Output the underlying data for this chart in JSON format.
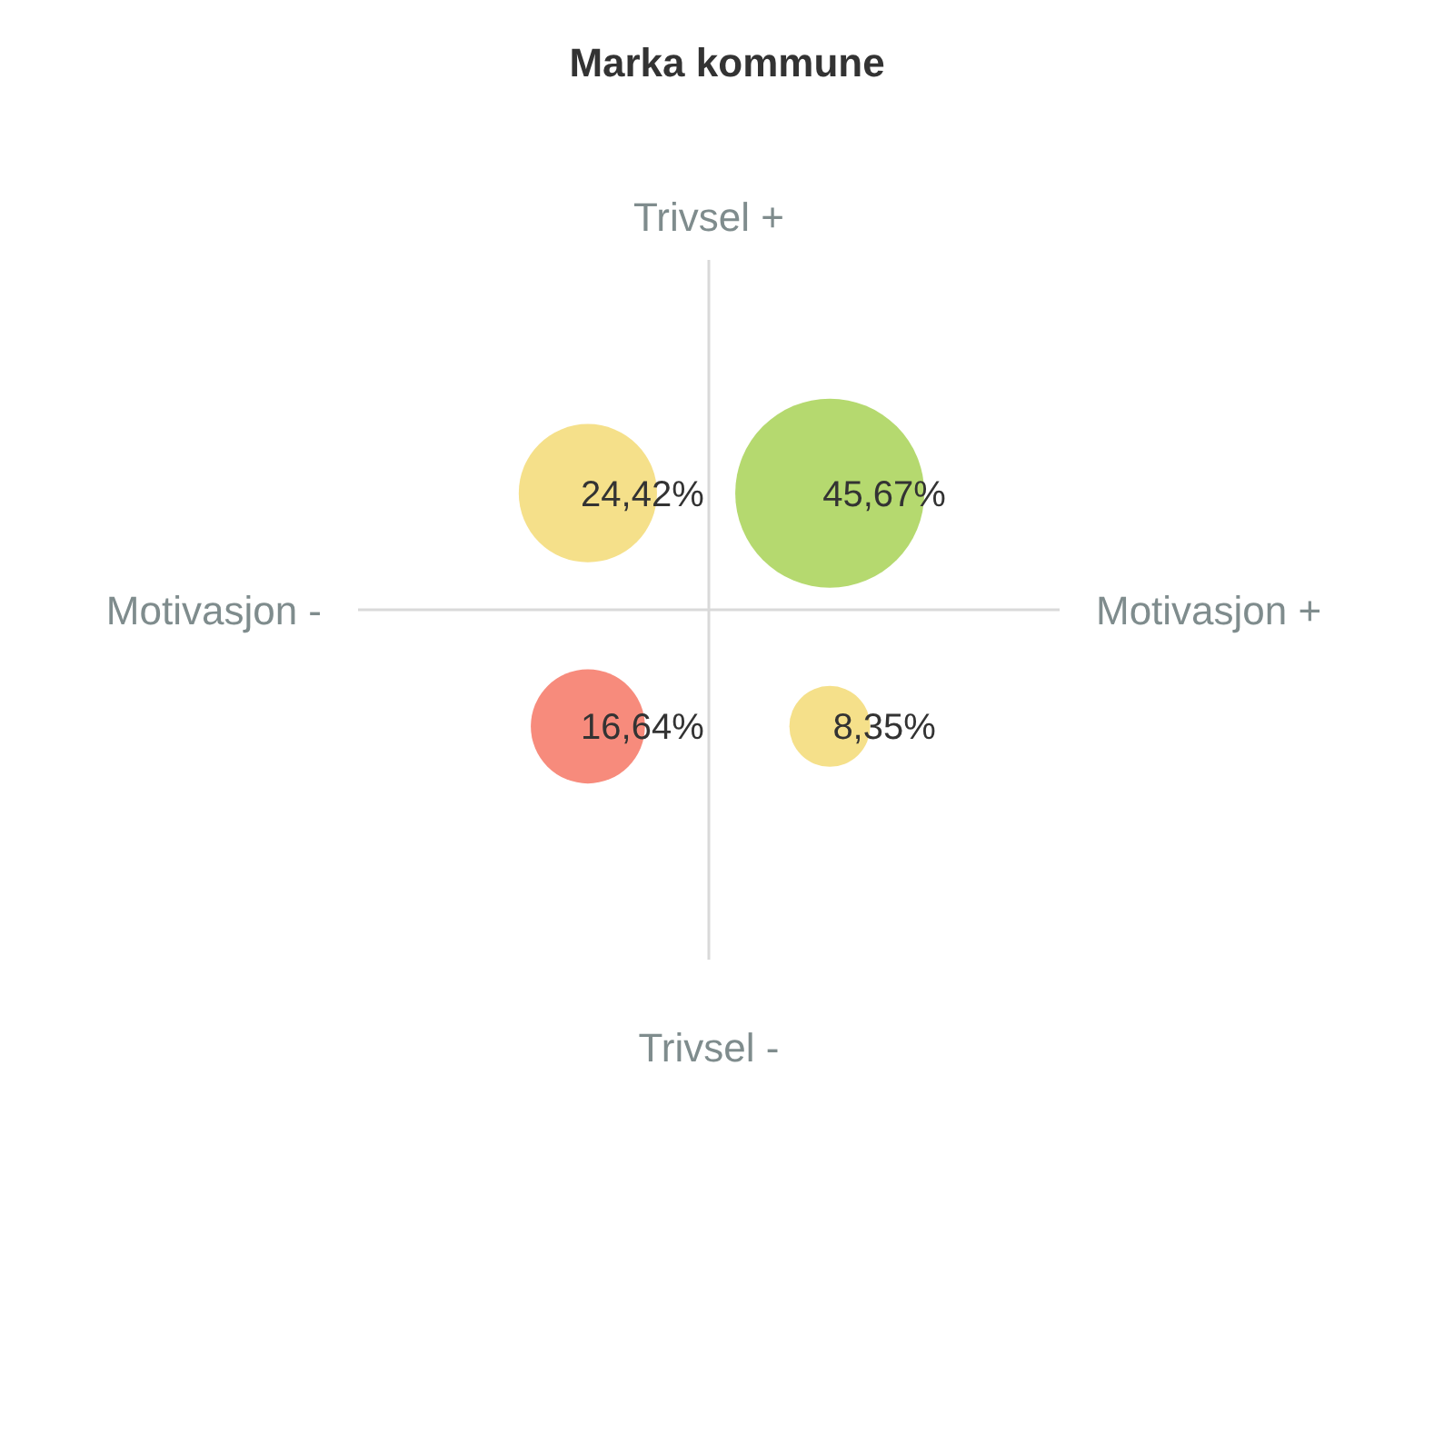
{
  "chart_data": {
    "type": "other",
    "title": "Marka kommune",
    "categories": [
      null,
      null,
      null,
      null
    ],
    "values": [
      24.42,
      45.67,
      16.64,
      8.35
    ],
    "value_labels": [
      "24,42%",
      "45,67%",
      "16,64%",
      "8,35%"
    ],
    "colors": [
      "#f5e08a",
      "#b5d96f",
      "#f78b7c",
      "#f5e08a"
    ],
    "annotations": [
      "Trivsel +",
      "Motivasjon -",
      "Motivasjon +",
      "Trivsel -"
    ],
    "legend": false
  }
}
